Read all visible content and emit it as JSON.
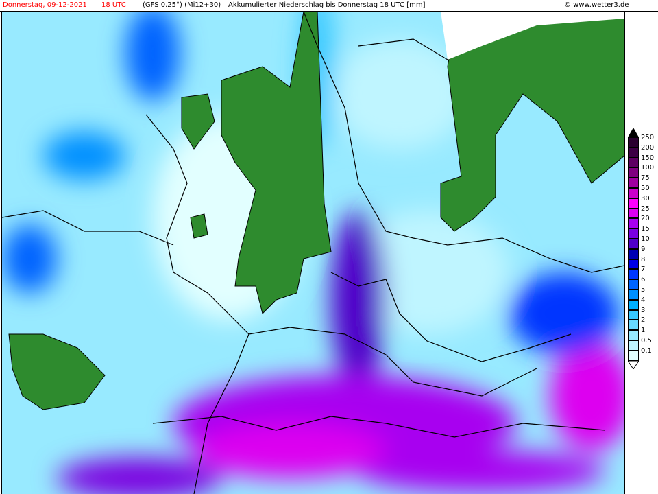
{
  "header": {
    "date_label": "Donnerstag, 09-12-2021",
    "time_label": "18 UTC",
    "model_label": "(GFS 0.25°) (Mi12+30)",
    "product_label": "Akkumulierter Niederschlag bis Donnerstag 18 UTC [mm]",
    "copyright_label": "© www.wetter3.de",
    "date_color": "#ff0000"
  },
  "legend": {
    "unit": "mm",
    "levels": [
      {
        "label": "250",
        "color": "#2a0030"
      },
      {
        "label": "200",
        "color": "#3d0045"
      },
      {
        "label": "150",
        "color": "#5e0062"
      },
      {
        "label": "100",
        "color": "#800080"
      },
      {
        "label": "75",
        "color": "#a000a0"
      },
      {
        "label": "50",
        "color": "#cc00cc"
      },
      {
        "label": "30",
        "color": "#ff00ff"
      },
      {
        "label": "25",
        "color": "#dd00f0"
      },
      {
        "label": "20",
        "color": "#a800f0"
      },
      {
        "label": "15",
        "color": "#7a00e0"
      },
      {
        "label": "10",
        "color": "#5000c8"
      },
      {
        "label": "9",
        "color": "#0000b4"
      },
      {
        "label": "8",
        "color": "#0000e6"
      },
      {
        "label": "7",
        "color": "#0036ff"
      },
      {
        "label": "6",
        "color": "#0064ff"
      },
      {
        "label": "5",
        "color": "#0090ff"
      },
      {
        "label": "4",
        "color": "#00b0ff"
      },
      {
        "label": "3",
        "color": "#38c8ff"
      },
      {
        "label": "2",
        "color": "#68daff"
      },
      {
        "label": "1",
        "color": "#98eaff"
      },
      {
        "label": "0.5",
        "color": "#bff5ff"
      },
      {
        "label": "0.1",
        "color": "#e2ffff"
      }
    ]
  },
  "map": {
    "land_no_precip_color": "#2e8b2e",
    "border_color": "#000000"
  }
}
